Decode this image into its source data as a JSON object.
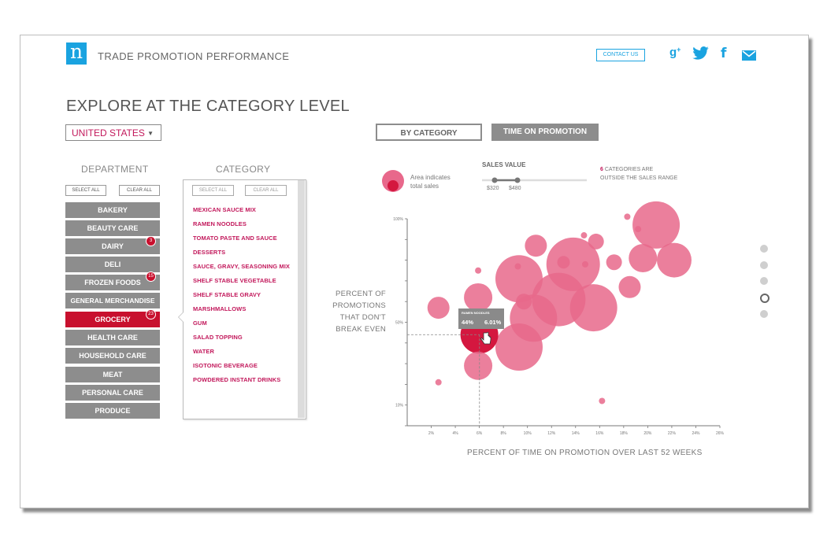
{
  "header": {
    "logo_letter": "n",
    "app_title": "TRADE PROMOTION PERFORMANCE",
    "contact_label": "CONTACT US",
    "social": [
      "g+",
      "twitter",
      "f",
      "mail"
    ]
  },
  "colors": {
    "accent": "#1aa3e0",
    "brand_red": "#c8102e",
    "bubble": "#e8688b",
    "bubble_selected": "#d4173f",
    "button_grey": "#8d8d8d"
  },
  "page": {
    "headline": "EXPLORE AT THE CATEGORY LEVEL",
    "country": "UNITED STATES"
  },
  "departments": {
    "title": "DEPARTMENT",
    "select_all": "SELECT ALL",
    "clear_all": "CLEAR ALL",
    "items": [
      {
        "label": "BAKERY",
        "badge": ""
      },
      {
        "label": "BEAUTY CARE",
        "badge": ""
      },
      {
        "label": "DAIRY",
        "badge": "3"
      },
      {
        "label": "DELI",
        "badge": ""
      },
      {
        "label": "FROZEN FOODS",
        "badge": "15"
      },
      {
        "label": "GENERAL MERCHANDISE",
        "badge": ""
      },
      {
        "label": "GROCERY",
        "badge": "23"
      },
      {
        "label": "HEALTH CARE",
        "badge": ""
      },
      {
        "label": "HOUSEHOLD CARE",
        "badge": ""
      },
      {
        "label": "MEAT",
        "badge": ""
      },
      {
        "label": "PERSONAL CARE",
        "badge": ""
      },
      {
        "label": "PRODUCE",
        "badge": ""
      }
    ],
    "selected": "GROCERY"
  },
  "categories": {
    "title": "CATEGORY",
    "select_all": "SELECT ALL",
    "clear_all": "CLEAR ALL",
    "items": [
      "MEXICAN SAUCE MIX",
      "RAMEN NOODLES",
      "TOMATO PASTE AND SAUCE",
      "DESSERTS",
      "SAUCE, GRAVY, SEASONING MIX",
      "SHELF STABLE VEGETABLE",
      "SHELF STABLE GRAVY",
      "MARSHMALLOWS",
      "GUM",
      "SALAD TOPPING",
      "WATER",
      "ISOTONIC BEVERAGE",
      "POWDERED INSTANT DRINKS"
    ]
  },
  "view_toggle": {
    "by_category": "BY CATEGORY",
    "time_on_promotion": "TIME ON PROMOTION",
    "active": "time_on_promotion"
  },
  "legend": {
    "area_text_1": "Area indicates",
    "area_text_2": "total sales",
    "sales_value_title": "SALES VALUE",
    "slider_min": "$320",
    "slider_max": "$480",
    "out_count": "6",
    "out_text_1": "CATEGORIES ARE",
    "out_text_2": "OUTSIDE THE SALES RANGE"
  },
  "tooltip": {
    "name": "RAMEN NOODLES",
    "y_value": "44%",
    "x_value": "6.01%"
  },
  "pagination": {
    "count": 5,
    "active": 3
  },
  "chart_data": {
    "type": "scatter",
    "title": "",
    "xlabel": "PERCENT OF TIME ON PROMOTION OVER LAST 52 WEEKS",
    "ylabel_lines": [
      "PERCENT OF",
      "PROMOTIONS",
      "THAT DON'T",
      "BREAK EVEN"
    ],
    "xlim": [
      0,
      26
    ],
    "x_ticks": [
      "2%",
      "4%",
      "6%",
      "8%",
      "10%",
      "12%",
      "14%",
      "16%",
      "18%",
      "20%",
      "22%",
      "24%",
      "26%"
    ],
    "x_tick_values": [
      2,
      4,
      6,
      8,
      10,
      12,
      14,
      16,
      18,
      20,
      22,
      24,
      26
    ],
    "ylim": [
      0,
      100
    ],
    "y_ticks": [
      "100%",
      "50%",
      "10%"
    ],
    "y_tick_values": [
      100,
      50,
      10
    ],
    "selected": "RAMEN NOODLES",
    "selected_point": {
      "x": 6.01,
      "y": 44
    },
    "points": [
      {
        "x": 2.6,
        "y": 57,
        "size": 7
      },
      {
        "x": 2.6,
        "y": 21,
        "size": 2
      },
      {
        "x": 5.9,
        "y": 62,
        "size": 9
      },
      {
        "x": 5.9,
        "y": 29,
        "size": 9
      },
      {
        "x": 6.0,
        "y": 44,
        "size": 12,
        "name": "RAMEN NOODLES"
      },
      {
        "x": 5.9,
        "y": 75,
        "size": 2
      },
      {
        "x": 9.3,
        "y": 71,
        "size": 15
      },
      {
        "x": 9.2,
        "y": 77,
        "size": 2
      },
      {
        "x": 10.7,
        "y": 87,
        "size": 7
      },
      {
        "x": 9.7,
        "y": 60,
        "size": 5
      },
      {
        "x": 9.3,
        "y": 38,
        "size": 15
      },
      {
        "x": 10.5,
        "y": 52,
        "size": 15
      },
      {
        "x": 12.6,
        "y": 61,
        "size": 17
      },
      {
        "x": 13.8,
        "y": 78,
        "size": 17
      },
      {
        "x": 13.0,
        "y": 79,
        "size": 4
      },
      {
        "x": 15.5,
        "y": 57,
        "size": 15
      },
      {
        "x": 14.8,
        "y": 78,
        "size": 2
      },
      {
        "x": 15.7,
        "y": 89,
        "size": 5
      },
      {
        "x": 14.7,
        "y": 92,
        "size": 2
      },
      {
        "x": 17.2,
        "y": 79,
        "size": 5
      },
      {
        "x": 18.5,
        "y": 67,
        "size": 7
      },
      {
        "x": 19.6,
        "y": 81,
        "size": 9
      },
      {
        "x": 20.7,
        "y": 97,
        "size": 15
      },
      {
        "x": 22.2,
        "y": 80,
        "size": 11
      },
      {
        "x": 19.2,
        "y": 95,
        "size": 2
      },
      {
        "x": 18.3,
        "y": 101,
        "size": 2
      },
      {
        "x": 16.2,
        "y": 12,
        "size": 2
      }
    ]
  }
}
